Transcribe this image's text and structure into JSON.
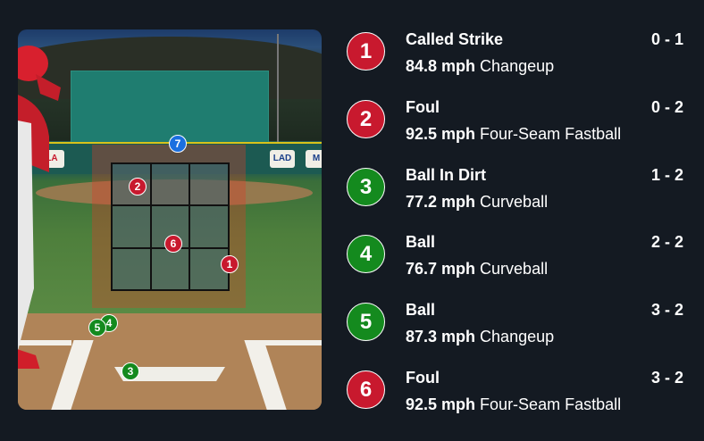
{
  "colors": {
    "strike": "#c8192e",
    "ball": "#148a1e",
    "in_play": "#1a6fe0",
    "background": "#141a22"
  },
  "scene": {
    "logos": [
      "LA",
      "LAD",
      "M"
    ],
    "markers": [
      {
        "number": "7",
        "color": "#1a6fe0"
      },
      {
        "number": "2",
        "color": "#c8192e"
      },
      {
        "number": "6",
        "color": "#c8192e"
      },
      {
        "number": "1",
        "color": "#c8192e"
      },
      {
        "number": "4",
        "color": "#148a1e"
      },
      {
        "number": "5",
        "color": "#148a1e"
      },
      {
        "number": "3",
        "color": "#148a1e"
      }
    ]
  },
  "pitches": [
    {
      "number": "1",
      "result": "Called Strike",
      "count": "0 - 1",
      "speed": "84.8 mph",
      "type": "Changeup",
      "color": "#c8192e"
    },
    {
      "number": "2",
      "result": "Foul",
      "count": "0 - 2",
      "speed": "92.5 mph",
      "type": "Four-Seam Fastball",
      "color": "#c8192e"
    },
    {
      "number": "3",
      "result": "Ball In Dirt",
      "count": "1 - 2",
      "speed": "77.2 mph",
      "type": "Curveball",
      "color": "#148a1e"
    },
    {
      "number": "4",
      "result": "Ball",
      "count": "2 - 2",
      "speed": "76.7 mph",
      "type": "Curveball",
      "color": "#148a1e"
    },
    {
      "number": "5",
      "result": "Ball",
      "count": "3 - 2",
      "speed": "87.3 mph",
      "type": "Changeup",
      "color": "#148a1e"
    },
    {
      "number": "6",
      "result": "Foul",
      "count": "3 - 2",
      "speed": "92.5 mph",
      "type": "Four-Seam Fastball",
      "color": "#c8192e"
    }
  ]
}
